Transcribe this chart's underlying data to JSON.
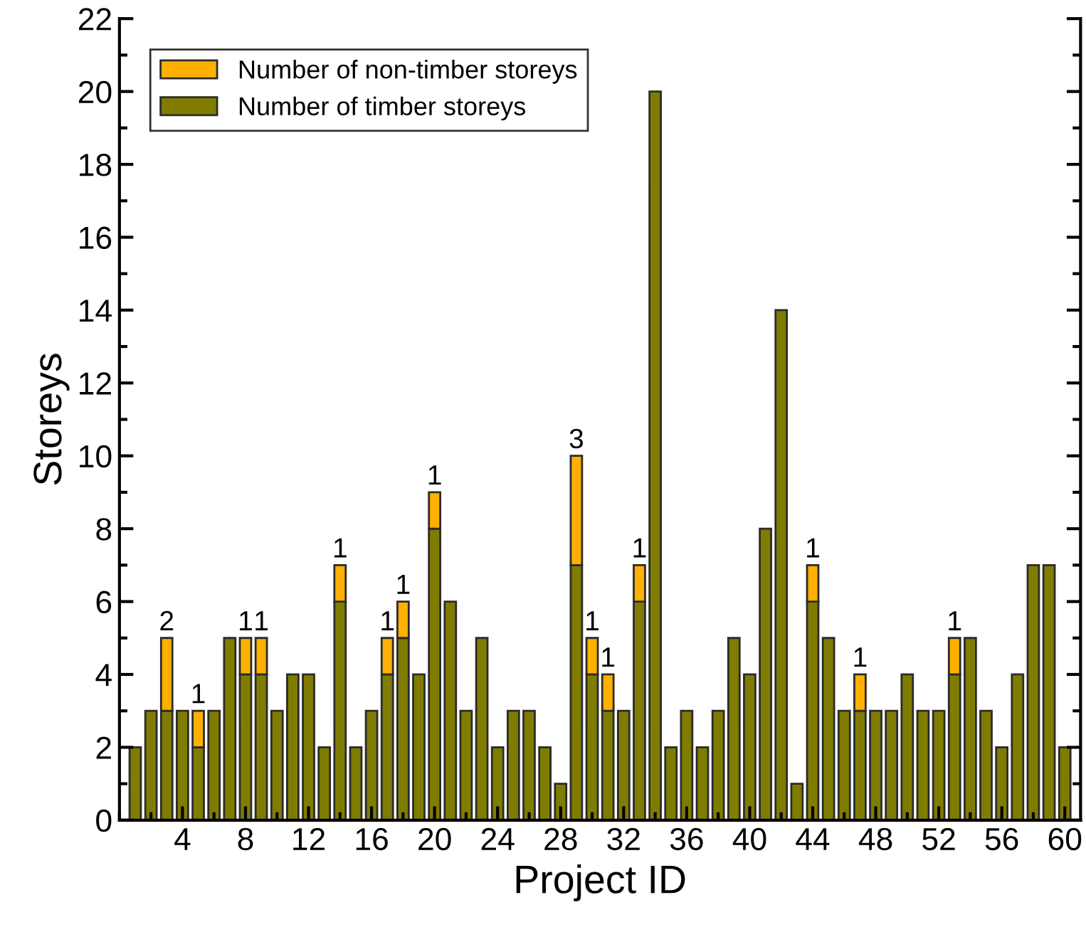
{
  "chart_data": {
    "type": "bar",
    "stacked": true,
    "xlabel": "Project ID",
    "ylabel": "Storeys",
    "x": [
      1,
      2,
      3,
      4,
      5,
      6,
      7,
      8,
      9,
      10,
      11,
      12,
      13,
      14,
      15,
      16,
      17,
      18,
      19,
      20,
      21,
      22,
      23,
      24,
      25,
      26,
      27,
      28,
      29,
      30,
      31,
      32,
      33,
      34,
      35,
      36,
      37,
      38,
      39,
      40,
      41,
      42,
      43,
      44,
      45,
      46,
      47,
      48,
      49,
      50,
      51,
      52,
      53,
      54,
      55,
      56,
      57,
      58,
      59,
      60
    ],
    "series": [
      {
        "name": "Number of timber storeys",
        "color": "#807c00",
        "values": [
          2,
          3,
          3,
          3,
          2,
          3,
          5,
          4,
          4,
          3,
          4,
          4,
          2,
          6,
          2,
          3,
          4,
          5,
          4,
          8,
          6,
          3,
          5,
          2,
          3,
          3,
          2,
          1,
          7,
          4,
          3,
          3,
          6,
          20,
          2,
          3,
          2,
          3,
          5,
          4,
          8,
          14,
          1,
          6,
          5,
          3,
          3,
          3,
          3,
          4,
          3,
          3,
          4,
          5,
          3,
          2,
          4,
          7,
          7,
          2
        ]
      },
      {
        "name": "Number of non-timber storeys",
        "color": "#ffb000",
        "values": [
          null,
          null,
          2,
          null,
          1,
          null,
          null,
          1,
          1,
          null,
          null,
          null,
          null,
          1,
          null,
          null,
          1,
          1,
          null,
          1,
          null,
          null,
          null,
          null,
          null,
          null,
          null,
          null,
          3,
          1,
          1,
          null,
          1,
          null,
          null,
          null,
          null,
          null,
          null,
          null,
          null,
          null,
          null,
          1,
          null,
          null,
          1,
          null,
          null,
          null,
          null,
          null,
          1,
          null,
          null,
          null,
          null,
          null,
          null,
          null
        ],
        "value_labels": [
          null,
          null,
          "2",
          null,
          "1",
          null,
          null,
          "1",
          "1",
          null,
          null,
          null,
          null,
          "1",
          null,
          null,
          "1",
          "1",
          null,
          "1",
          null,
          null,
          null,
          null,
          null,
          null,
          null,
          null,
          "3",
          "1",
          "1",
          null,
          "1",
          null,
          null,
          null,
          null,
          null,
          null,
          null,
          null,
          null,
          null,
          "1",
          null,
          null,
          "1",
          null,
          null,
          null,
          null,
          null,
          "1",
          null,
          null,
          null,
          null,
          null,
          null,
          null
        ]
      }
    ],
    "xlim": [
      0,
      61
    ],
    "xticks": [
      4,
      8,
      12,
      16,
      20,
      24,
      28,
      32,
      36,
      40,
      44,
      48,
      52,
      56,
      60
    ],
    "ylim": [
      0,
      22
    ],
    "yticks": [
      0,
      2,
      4,
      6,
      8,
      10,
      12,
      14,
      16,
      18,
      20,
      22
    ],
    "grid": false,
    "legend": "top left"
  }
}
